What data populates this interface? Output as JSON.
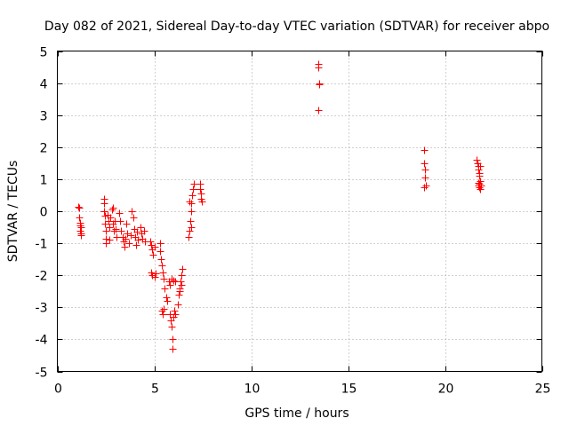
{
  "colors": {
    "marker": "#ff0000",
    "grid": "#a0a0a0",
    "axis": "#000000",
    "background": "#ffffff"
  },
  "chart_data": {
    "type": "scatter",
    "title": "Day 082 of 2021, Sidereal Day-to-day VTEC variation (SDTVAR) for receiver abpo",
    "xlabel": "GPS time / hours",
    "ylabel": "SDTVAR / TECUs",
    "xlim": [
      0,
      25
    ],
    "ylim": [
      -5,
      5
    ],
    "xticks": [
      0,
      5,
      10,
      15,
      20,
      25
    ],
    "yticks": [
      -5,
      -4,
      -3,
      -2,
      -1,
      0,
      1,
      2,
      3,
      4,
      5
    ],
    "grid": true,
    "marker": "plus",
    "series": [
      {
        "name": "SDTVAR",
        "points": [
          [
            1.1,
            0.15
          ],
          [
            1.12,
            0.1
          ],
          [
            1.12,
            -0.2
          ],
          [
            1.15,
            -0.35
          ],
          [
            1.15,
            -0.45
          ],
          [
            1.18,
            -0.6
          ],
          [
            1.2,
            -0.7
          ],
          [
            1.22,
            -0.75
          ],
          [
            1.22,
            -0.5
          ],
          [
            2.4,
            0.4
          ],
          [
            2.42,
            0.25
          ],
          [
            2.42,
            0.0
          ],
          [
            2.45,
            -0.15
          ],
          [
            2.45,
            -0.4
          ],
          [
            2.48,
            -0.6
          ],
          [
            2.5,
            -0.85
          ],
          [
            2.52,
            -1.0
          ],
          [
            2.6,
            -0.1
          ],
          [
            2.65,
            -0.3
          ],
          [
            2.7,
            -0.5
          ],
          [
            2.75,
            -0.2
          ],
          [
            2.8,
            0.05
          ],
          [
            2.85,
            -0.4
          ],
          [
            2.9,
            -0.6
          ],
          [
            2.95,
            -0.3
          ],
          [
            3.0,
            -0.55
          ],
          [
            2.7,
            -0.9
          ],
          [
            2.85,
            0.1
          ],
          [
            3.05,
            -0.8
          ],
          [
            3.2,
            -0.05
          ],
          [
            3.25,
            -0.3
          ],
          [
            3.3,
            -0.6
          ],
          [
            3.35,
            -0.8
          ],
          [
            3.4,
            -0.95
          ],
          [
            3.45,
            -1.1
          ],
          [
            3.5,
            -0.85
          ],
          [
            3.55,
            -0.4
          ],
          [
            3.6,
            -0.7
          ],
          [
            3.7,
            -1.0
          ],
          [
            3.8,
            -0.75
          ],
          [
            3.85,
            0.0
          ],
          [
            3.9,
            -0.2
          ],
          [
            3.95,
            -0.55
          ],
          [
            4.0,
            -0.8
          ],
          [
            4.05,
            -1.05
          ],
          [
            4.1,
            -0.65
          ],
          [
            4.15,
            -0.9
          ],
          [
            4.3,
            -0.5
          ],
          [
            4.35,
            -0.7
          ],
          [
            4.4,
            -0.85
          ],
          [
            4.45,
            -0.6
          ],
          [
            4.5,
            -0.95
          ],
          [
            4.8,
            -0.95
          ],
          [
            4.85,
            -1.05
          ],
          [
            4.9,
            -1.2
          ],
          [
            4.95,
            -1.35
          ],
          [
            5.0,
            -1.1
          ],
          [
            4.85,
            -1.9
          ],
          [
            4.9,
            -2.0
          ],
          [
            5.0,
            -2.05
          ],
          [
            5.05,
            -1.95
          ],
          [
            5.3,
            -1.0
          ],
          [
            5.32,
            -1.25
          ],
          [
            5.35,
            -1.5
          ],
          [
            5.4,
            -1.7
          ],
          [
            5.45,
            -1.9
          ],
          [
            5.5,
            -2.1
          ],
          [
            5.55,
            -2.4
          ],
          [
            5.6,
            -2.7
          ],
          [
            5.65,
            -2.8
          ],
          [
            5.4,
            -3.1
          ],
          [
            5.45,
            -3.2
          ],
          [
            5.5,
            -3.05
          ],
          [
            5.75,
            -2.2
          ],
          [
            5.8,
            -2.3
          ],
          [
            5.9,
            -2.1
          ],
          [
            6.0,
            -2.15
          ],
          [
            6.1,
            -2.2
          ],
          [
            5.8,
            -3.2
          ],
          [
            5.85,
            -3.4
          ],
          [
            5.9,
            -3.6
          ],
          [
            5.92,
            -4.0
          ],
          [
            5.95,
            -4.3
          ],
          [
            6.0,
            -3.3
          ],
          [
            6.05,
            -3.1
          ],
          [
            6.1,
            -3.2
          ],
          [
            6.2,
            -2.9
          ],
          [
            6.25,
            -2.6
          ],
          [
            6.3,
            -2.4
          ],
          [
            6.35,
            -2.2
          ],
          [
            6.4,
            -2.0
          ],
          [
            6.45,
            -1.8
          ],
          [
            6.3,
            -2.5
          ],
          [
            6.4,
            -2.3
          ],
          [
            6.75,
            -0.8
          ],
          [
            6.8,
            -0.6
          ],
          [
            6.85,
            -0.3
          ],
          [
            6.9,
            0.0
          ],
          [
            6.92,
            0.25
          ],
          [
            6.95,
            0.5
          ],
          [
            7.0,
            0.7
          ],
          [
            7.05,
            0.85
          ],
          [
            6.8,
            0.3
          ],
          [
            6.9,
            -0.5
          ],
          [
            7.35,
            0.85
          ],
          [
            7.38,
            0.7
          ],
          [
            7.4,
            0.55
          ],
          [
            7.42,
            0.4
          ],
          [
            7.45,
            0.3
          ],
          [
            13.45,
            4.6
          ],
          [
            13.48,
            4.5
          ],
          [
            13.5,
            4.0
          ],
          [
            13.52,
            3.95
          ],
          [
            13.48,
            3.15
          ],
          [
            18.9,
            1.9
          ],
          [
            18.92,
            1.5
          ],
          [
            18.95,
            1.3
          ],
          [
            18.98,
            1.05
          ],
          [
            19.0,
            0.8
          ],
          [
            18.9,
            0.75
          ],
          [
            21.65,
            1.6
          ],
          [
            21.68,
            1.5
          ],
          [
            21.7,
            1.4
          ],
          [
            21.72,
            1.3
          ],
          [
            21.75,
            1.2
          ],
          [
            21.78,
            1.1
          ],
          [
            21.8,
            1.4
          ],
          [
            21.7,
            0.9
          ],
          [
            21.72,
            0.8
          ],
          [
            21.75,
            0.75
          ],
          [
            21.78,
            0.85
          ],
          [
            21.8,
            0.7
          ],
          [
            21.82,
            0.95
          ],
          [
            21.85,
            0.8
          ]
        ]
      }
    ]
  }
}
